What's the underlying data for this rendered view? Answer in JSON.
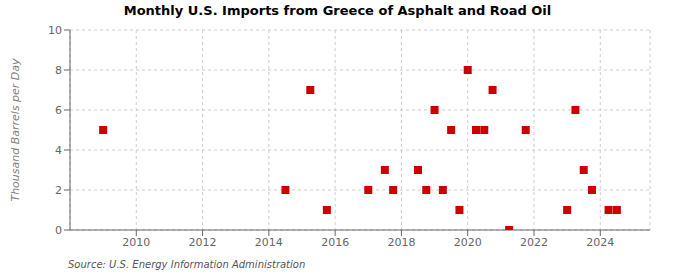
{
  "chart_data": {
    "type": "scatter",
    "title": "Monthly U.S. Imports from Greece of Asphalt and Road Oil",
    "ylabel": "Thousand Barrels per Day",
    "source": "Source: U.S. Energy Information Administration",
    "color": "#cc0000",
    "marker": "square",
    "grid": true,
    "xlim": [
      2008.0,
      2025.5
    ],
    "ylim": [
      0,
      10
    ],
    "xticks": [
      2010,
      2012,
      2014,
      2016,
      2018,
      2020,
      2022,
      2024
    ],
    "yticks": [
      0,
      2,
      4,
      6,
      8,
      10
    ],
    "x": [
      2009.0,
      2014.5,
      2015.25,
      2015.75,
      2017.0,
      2017.5,
      2017.75,
      2018.5,
      2018.75,
      2019.0,
      2019.25,
      2019.5,
      2019.75,
      2020.0,
      2020.25,
      2020.5,
      2020.75,
      2021.25,
      2021.75,
      2023.0,
      2023.25,
      2023.5,
      2023.75,
      2024.25,
      2024.5
    ],
    "values": [
      5,
      2,
      7,
      1,
      2,
      3,
      2,
      3,
      2,
      6,
      2,
      5,
      1,
      8,
      5,
      5,
      7,
      0,
      5,
      1,
      6,
      3,
      2,
      1,
      1
    ]
  }
}
